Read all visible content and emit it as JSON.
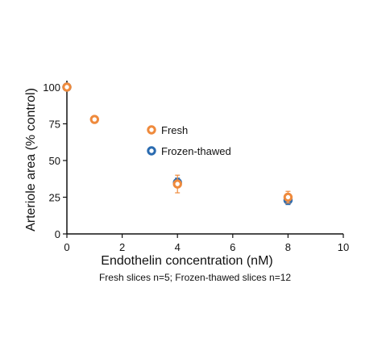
{
  "chart_data": {
    "type": "scatter",
    "title": "",
    "xlabel": "Endothelin concentration (nM)",
    "ylabel": "Arteriole area (% control)",
    "caption": "Fresh slices n=5; Frozen-thawed slices n=12",
    "xlim": [
      0,
      10
    ],
    "ylim": [
      0,
      100
    ],
    "xticks": [
      0,
      2,
      4,
      6,
      8,
      10
    ],
    "yticks": [
      0,
      25,
      50,
      75,
      100
    ],
    "grid": false,
    "legend_position": "center",
    "series": [
      {
        "name": "Frozen-thawed",
        "color": "#2a6bb0",
        "points": [
          {
            "x": 0,
            "y": 100,
            "err": 0
          },
          {
            "x": 4,
            "y": 35,
            "err": 3
          },
          {
            "x": 8,
            "y": 23,
            "err": 3
          }
        ]
      },
      {
        "name": "Fresh",
        "color": "#ef8a3c",
        "points": [
          {
            "x": 0,
            "y": 100,
            "err": 0
          },
          {
            "x": 1,
            "y": 78,
            "err": 0
          },
          {
            "x": 4,
            "y": 34,
            "err": 6
          },
          {
            "x": 8,
            "y": 25,
            "err": 4
          }
        ]
      }
    ],
    "legend_order": [
      1,
      0
    ]
  }
}
